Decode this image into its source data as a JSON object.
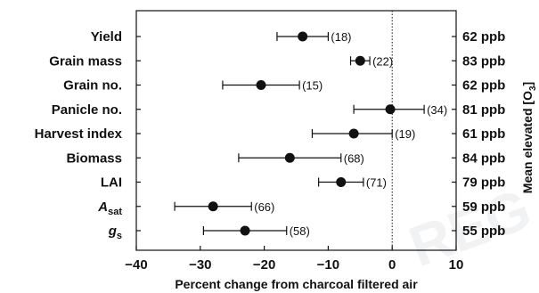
{
  "chart_data": {
    "type": "forest-plot",
    "xlabel": "Percent change from charcoal filtered air",
    "right_axis_label": "Mean elevated [O",
    "right_axis_label_sub": "3",
    "right_axis_label_end": "]",
    "xlim": [
      -40,
      10
    ],
    "xticks": [
      "−40",
      "−30",
      "−20",
      "−10",
      "0",
      "10"
    ],
    "xtick_values": [
      -40,
      -30,
      -20,
      -10,
      0,
      10
    ],
    "reference_line": 0,
    "rows": [
      {
        "label": "Yield",
        "sub": "",
        "italic": false,
        "value": -14,
        "ci": [
          -18,
          -10
        ],
        "n": "(18)",
        "ppb": "62 ppb"
      },
      {
        "label": "Grain mass",
        "sub": "",
        "italic": false,
        "value": -5,
        "ci": [
          -6.5,
          -3.5
        ],
        "n": "(22)",
        "ppb": "83 ppb"
      },
      {
        "label": "Grain no.",
        "sub": "",
        "italic": false,
        "value": -20.5,
        "ci": [
          -26.5,
          -14.5
        ],
        "n": "(15)",
        "ppb": "62 ppb"
      },
      {
        "label": "Panicle no.",
        "sub": "",
        "italic": false,
        "value": -0.3,
        "ci": [
          -6,
          5
        ],
        "n": "(34)",
        "ppb": "81 ppb"
      },
      {
        "label": "Harvest index",
        "sub": "",
        "italic": false,
        "value": -6,
        "ci": [
          -12.5,
          0
        ],
        "n": "(19)",
        "ppb": "61 ppb"
      },
      {
        "label": "Biomass",
        "sub": "",
        "italic": false,
        "value": -16,
        "ci": [
          -24,
          -8
        ],
        "n": "(68)",
        "ppb": "84 ppb"
      },
      {
        "label": "LAI",
        "sub": "",
        "italic": false,
        "value": -8,
        "ci": [
          -11.5,
          -4.5
        ],
        "n": "(71)",
        "ppb": "79 ppb"
      },
      {
        "label": "A",
        "sub": "sat",
        "italic": true,
        "value": -28,
        "ci": [
          -34,
          -22
        ],
        "n": "(66)",
        "ppb": "59 ppb"
      },
      {
        "label": "g",
        "sub": "s",
        "italic": true,
        "value": -23,
        "ci": [
          -29.5,
          -16.5
        ],
        "n": "(58)",
        "ppb": "55 ppb"
      }
    ]
  },
  "watermark": {
    "text": "REG"
  }
}
